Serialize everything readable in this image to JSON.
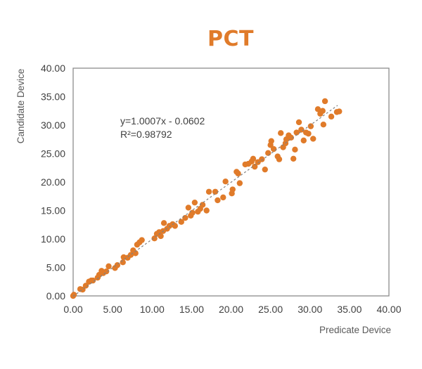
{
  "chart_data": {
    "type": "scatter",
    "title": "PCT",
    "xlabel": "Predicate Device",
    "ylabel": "Candidate Device",
    "xlim": [
      0,
      40
    ],
    "ylim": [
      0,
      40
    ],
    "x_ticks": [
      "0.00",
      "5.00",
      "10.00",
      "15.00",
      "20.00",
      "25.00",
      "30.00",
      "35.00",
      "40.00"
    ],
    "y_ticks": [
      "0.00",
      "5.00",
      "10.00",
      "15.00",
      "20.00",
      "25.00",
      "30.00",
      "35.00",
      "40.00"
    ],
    "grid": false,
    "legend": "none",
    "marker_color": "#E07B2A",
    "title_color": "#E07B2A",
    "trendline": {
      "style": "dashed",
      "color": "#808080",
      "slope": 1.0007,
      "intercept": -0.0602,
      "x_range": [
        0,
        33.5
      ]
    },
    "annotations": [
      "y=1.0007x - 0.0602",
      "R²=0.98792"
    ],
    "series": [
      {
        "x": [
          0.0,
          0.1,
          0.9,
          1.2,
          1.6,
          2.0,
          2.3,
          2.5,
          3.1,
          3.3,
          3.6,
          3.8,
          4.2,
          4.5,
          5.3,
          5.6,
          6.3,
          6.4,
          6.9,
          7.3,
          7.6,
          7.9,
          8.1,
          8.4,
          8.7,
          10.3,
          10.6,
          10.9,
          11.1,
          11.4,
          11.5,
          11.9,
          12.2,
          12.6,
          12.9,
          13.7,
          14.2,
          14.6,
          14.9,
          15.1,
          15.4,
          15.8,
          16.1,
          16.4,
          16.9,
          17.2,
          18.0,
          18.3,
          19.0,
          19.3,
          20.1,
          20.2,
          20.7,
          20.9,
          21.1,
          21.8,
          22.2,
          22.6,
          22.8,
          23.0,
          23.4,
          23.9,
          24.3,
          24.7,
          25.0,
          25.1,
          25.4,
          25.9,
          26.1,
          26.3,
          26.6,
          26.9,
          27.0,
          27.3,
          27.6,
          27.9,
          28.1,
          28.3,
          28.6,
          28.9,
          29.2,
          29.5,
          29.8,
          30.1,
          30.4,
          31.0,
          31.3,
          31.6,
          31.7,
          31.9,
          32.7,
          33.4,
          33.7
        ],
        "y": [
          0.0,
          0.2,
          1.2,
          1.1,
          1.8,
          2.5,
          2.7,
          2.7,
          3.2,
          3.7,
          4.4,
          4.0,
          4.3,
          5.2,
          4.9,
          5.4,
          5.9,
          6.8,
          6.7,
          7.2,
          8.0,
          7.5,
          9.0,
          9.4,
          9.8,
          10.1,
          10.9,
          11.2,
          10.5,
          11.4,
          12.8,
          11.8,
          12.3,
          12.6,
          12.3,
          13.0,
          13.7,
          15.5,
          14.1,
          14.6,
          16.4,
          14.8,
          15.3,
          16.0,
          15.0,
          18.3,
          18.3,
          16.8,
          17.3,
          20.1,
          18.0,
          18.7,
          21.8,
          21.5,
          19.8,
          23.1,
          23.2,
          23.6,
          24.1,
          22.7,
          23.5,
          24.0,
          22.2,
          25.1,
          26.5,
          27.2,
          25.8,
          24.5,
          24.0,
          28.6,
          26.1,
          26.8,
          27.5,
          28.2,
          27.8,
          24.1,
          25.7,
          28.7,
          30.5,
          29.2,
          27.3,
          28.7,
          28.5,
          29.8,
          27.6,
          32.8,
          32.0,
          32.5,
          30.1,
          34.2,
          31.5,
          32.3,
          32.4
        ]
      }
    ]
  }
}
